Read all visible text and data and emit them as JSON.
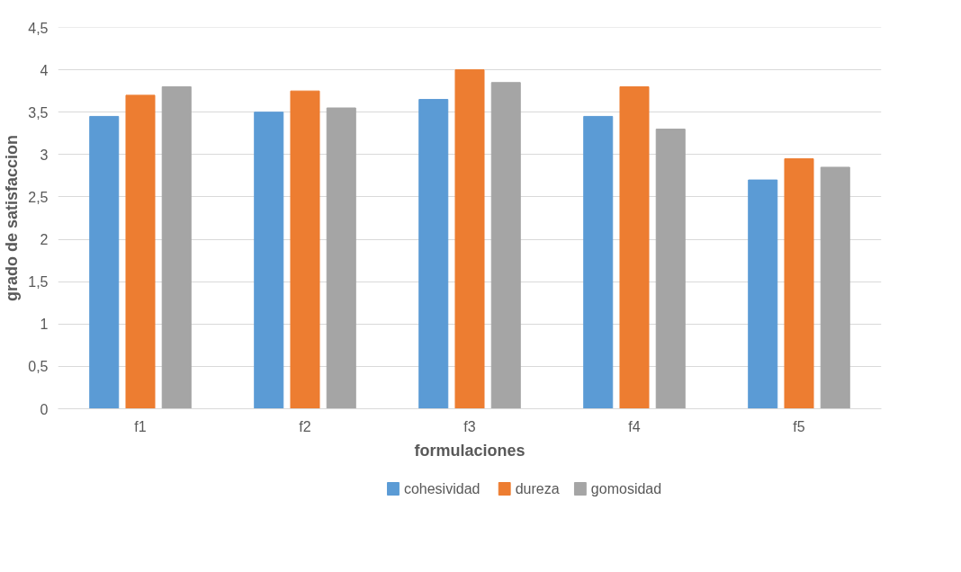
{
  "chart_data": {
    "type": "bar",
    "xlabel": "formulaciones",
    "ylabel": "grado de satisfaccion",
    "categories": [
      "f1",
      "f2",
      "f3",
      "f4",
      "f5"
    ],
    "series": [
      {
        "name": "cohesividad",
        "color": "#5b9bd5",
        "values": [
          3.45,
          3.5,
          3.65,
          3.45,
          2.7
        ]
      },
      {
        "name": "dureza",
        "color": "#ed7d31",
        "values": [
          3.7,
          3.75,
          4,
          3.8,
          2.95
        ]
      },
      {
        "name": "gomosidad",
        "color": "#a5a5a5",
        "values": [
          3.8,
          3.55,
          3.85,
          3.3,
          2.85
        ]
      }
    ],
    "ylim": [
      0,
      4.5
    ],
    "yticks": [
      0,
      {
        "value": 0.5,
        "label": "0,5"
      },
      1,
      {
        "value": 1.5,
        "label": "1,5"
      },
      2,
      {
        "value": 2.5,
        "label": "2,5"
      },
      3,
      {
        "value": 3.5,
        "label": "3,5"
      },
      4,
      {
        "value": 4.5,
        "label": "4,5"
      }
    ],
    "grid": "y",
    "legend": "bottom"
  }
}
